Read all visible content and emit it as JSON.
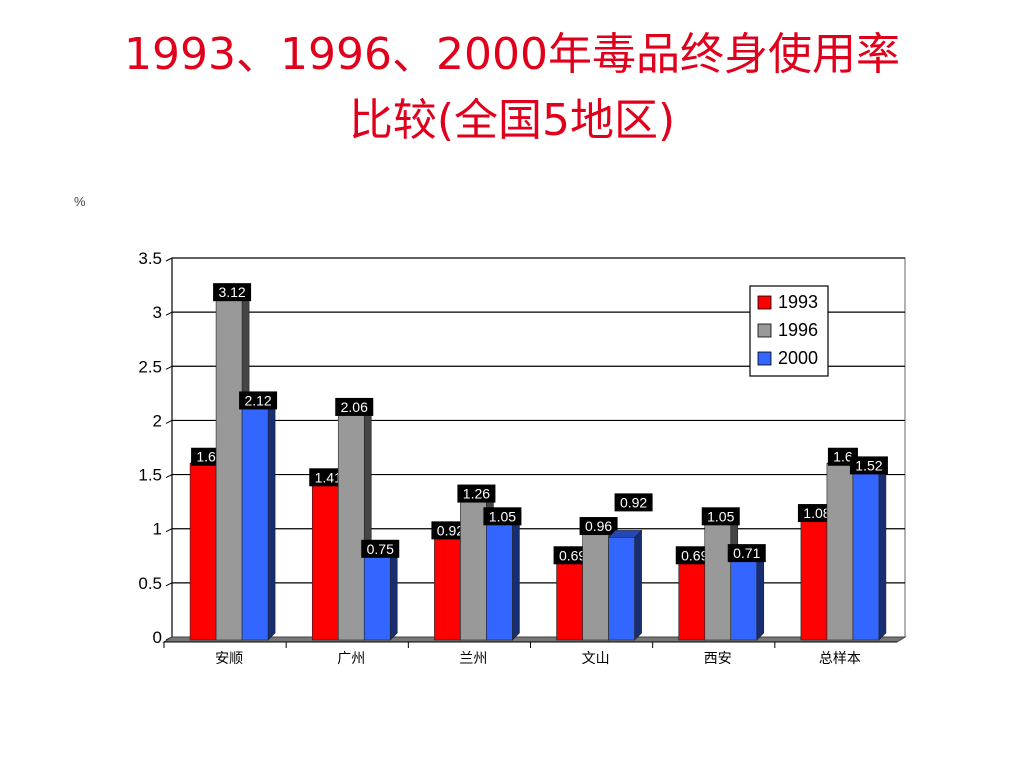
{
  "slide": {
    "title_line1": "1993、1996、2000年毒品终身使用率",
    "title_line2": "比较(全国5地区)"
  },
  "chart_data": {
    "type": "bar",
    "ylabel": "%",
    "ylim": [
      0,
      3.5
    ],
    "yticks": [
      0,
      0.5,
      1,
      1.5,
      2,
      2.5,
      3,
      3.5
    ],
    "ytick_labels": [
      "0",
      "0.5",
      "1",
      "1.5",
      "2",
      "2.5",
      "3",
      "3.5"
    ],
    "categories": [
      "安顺",
      "广州",
      "兰州",
      "文山",
      "西安",
      "总样本"
    ],
    "series": [
      {
        "name": "1993",
        "color": "#ff0000",
        "values": [
          1.6,
          1.41,
          0.92,
          0.69,
          0.69,
          1.08
        ],
        "labels": [
          "1.6",
          "1.41",
          "0.92",
          "0.69",
          "0.69",
          "1.08"
        ]
      },
      {
        "name": "1996",
        "color": "#999999",
        "values": [
          3.12,
          2.06,
          1.26,
          0.96,
          1.05,
          1.6
        ],
        "labels": [
          "3.12",
          "2.06",
          "1.26",
          "0.96",
          "1.05",
          "1.6"
        ]
      },
      {
        "name": "2000",
        "color": "#3366ff",
        "values": [
          2.12,
          0.75,
          1.05,
          0.92,
          0.71,
          1.52
        ],
        "labels": [
          "2.12",
          "0.75",
          "1.05",
          "0.92",
          "0.71",
          "1.52"
        ]
      }
    ],
    "legend_position": "top-right",
    "grid": true
  }
}
